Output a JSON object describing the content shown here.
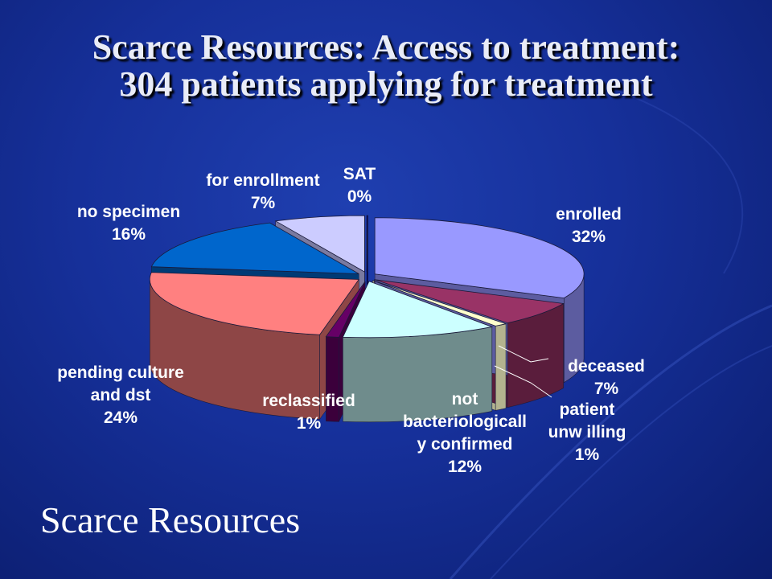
{
  "slide": {
    "title_line1": "Scarce Resources: Access to treatment:",
    "title_line2": "304 patients applying for treatment",
    "footer": "Scarce Resources"
  },
  "colors": {
    "background": "#16309a",
    "label_text": "#ffffff"
  },
  "chart_data": {
    "type": "pie",
    "style": "3d-exploded",
    "title": "",
    "slices": [
      {
        "label": "enrolled",
        "value": 32,
        "display": "32%",
        "color": "#9999ff",
        "side": "#5c5ca0"
      },
      {
        "label": "deceased",
        "value": 7,
        "display": "7%",
        "color": "#993366",
        "side": "#5a1d3c"
      },
      {
        "label": "patient unwilling",
        "value": 1,
        "display": "1%",
        "color": "#ffffcc",
        "side": "#b3b38f"
      },
      {
        "label": "not bacteriologically confirmed",
        "value": 12,
        "display": "12%",
        "color": "#ccffff",
        "side": "#6f8c8c"
      },
      {
        "label": "reclassified",
        "value": 1,
        "display": "1%",
        "color": "#660066",
        "side": "#3b003b"
      },
      {
        "label": "pending culture and dst",
        "value": 24,
        "display": "24%",
        "color": "#ff8080",
        "side": "#8e4646"
      },
      {
        "label": "no specimen",
        "value": 16,
        "display": "16%",
        "color": "#0066cc",
        "side": "#003a75"
      },
      {
        "label": "for enrollment",
        "value": 7,
        "display": "7%",
        "color": "#ccccff",
        "side": "#7a7aa0"
      },
      {
        "label": "SAT",
        "value": 0,
        "display": "0%",
        "color": "#000080",
        "side": "#000050"
      }
    ],
    "labels": [
      {
        "lines": [
          "enrolled",
          "32%"
        ]
      },
      {
        "lines": [
          "deceased",
          "7%"
        ]
      },
      {
        "lines": [
          "patient",
          "unw illing",
          "1%"
        ]
      },
      {
        "lines": [
          "not",
          "bacteriologicall",
          "y confirmed",
          "12%"
        ]
      },
      {
        "lines": [
          "reclassified",
          "1%"
        ]
      },
      {
        "lines": [
          "pending culture",
          "and dst",
          "24%"
        ]
      },
      {
        "lines": [
          "no specimen",
          "16%"
        ]
      },
      {
        "lines": [
          "for enrollment",
          "7%"
        ]
      },
      {
        "lines": [
          "SAT",
          "0%"
        ]
      }
    ]
  }
}
